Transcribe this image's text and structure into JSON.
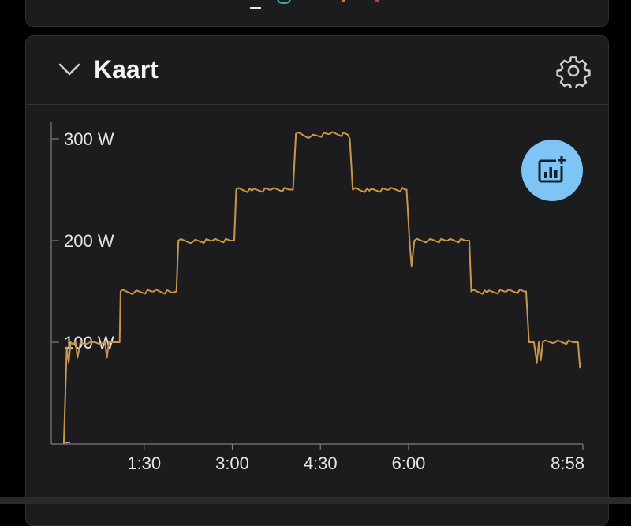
{
  "card": {
    "title": "Kaart"
  },
  "colors": {
    "line": "#c8964a",
    "fab": "#7ec4f5",
    "background": "#1c1c1e",
    "axis": "#7d7d7d"
  },
  "icons": {
    "collapse": "chevron-down-icon",
    "settings": "gear-icon",
    "add_chart": "add-chart-icon"
  },
  "chart_data": {
    "type": "line",
    "title": "",
    "xlabel": "",
    "ylabel": "",
    "ylim": [
      0,
      300
    ],
    "y_ticks": [
      {
        "value": 300,
        "label": "300 W"
      },
      {
        "value": 200,
        "label": "200 W"
      },
      {
        "value": 100,
        "label": "100 W"
      }
    ],
    "x_ticks": [
      {
        "value": 90,
        "label": "1:30"
      },
      {
        "value": 180,
        "label": "3:00"
      },
      {
        "value": 270,
        "label": "4:30"
      },
      {
        "value": 360,
        "label": "6:00"
      },
      {
        "value": 538,
        "label": "8:58"
      }
    ],
    "xlim": [
      0,
      538
    ],
    "series": [
      {
        "values": [
          [
            8,
            0
          ],
          [
            11,
            95
          ],
          [
            13,
            80
          ],
          [
            15,
            100
          ],
          [
            17,
            98
          ],
          [
            20,
            100
          ],
          [
            22,
            85
          ],
          [
            25,
            100
          ],
          [
            30,
            98
          ],
          [
            35,
            100
          ],
          [
            40,
            100
          ],
          [
            45,
            98
          ],
          [
            50,
            100
          ],
          [
            52,
            85
          ],
          [
            54,
            100
          ],
          [
            60,
            100
          ],
          [
            65,
            100
          ],
          [
            66,
            150
          ],
          [
            80,
            149
          ],
          [
            100,
            150
          ],
          [
            120,
            149
          ],
          [
            123,
            150
          ],
          [
            125,
            200
          ],
          [
            140,
            199
          ],
          [
            160,
            200
          ],
          [
            180,
            200
          ],
          [
            182,
            200
          ],
          [
            184,
            250
          ],
          [
            200,
            249
          ],
          [
            220,
            250
          ],
          [
            240,
            250
          ],
          [
            242,
            250
          ],
          [
            245,
            305
          ],
          [
            260,
            302
          ],
          [
            280,
            305
          ],
          [
            298,
            304
          ],
          [
            300,
            300
          ],
          [
            303,
            250
          ],
          [
            320,
            249
          ],
          [
            340,
            250
          ],
          [
            356,
            250
          ],
          [
            358,
            250
          ],
          [
            361,
            200
          ],
          [
            363,
            175
          ],
          [
            366,
            200
          ],
          [
            380,
            200
          ],
          [
            400,
            200
          ],
          [
            420,
            200
          ],
          [
            422,
            200
          ],
          [
            424,
            150
          ],
          [
            440,
            149
          ],
          [
            460,
            150
          ],
          [
            478,
            150
          ],
          [
            480,
            150
          ],
          [
            483,
            100
          ],
          [
            488,
            100
          ],
          [
            491,
            80
          ],
          [
            493,
            100
          ],
          [
            495,
            82
          ],
          [
            497,
            100
          ],
          [
            510,
            100
          ],
          [
            530,
            100
          ],
          [
            533,
            100
          ],
          [
            535,
            75
          ],
          [
            536,
            80
          ]
        ]
      }
    ]
  }
}
